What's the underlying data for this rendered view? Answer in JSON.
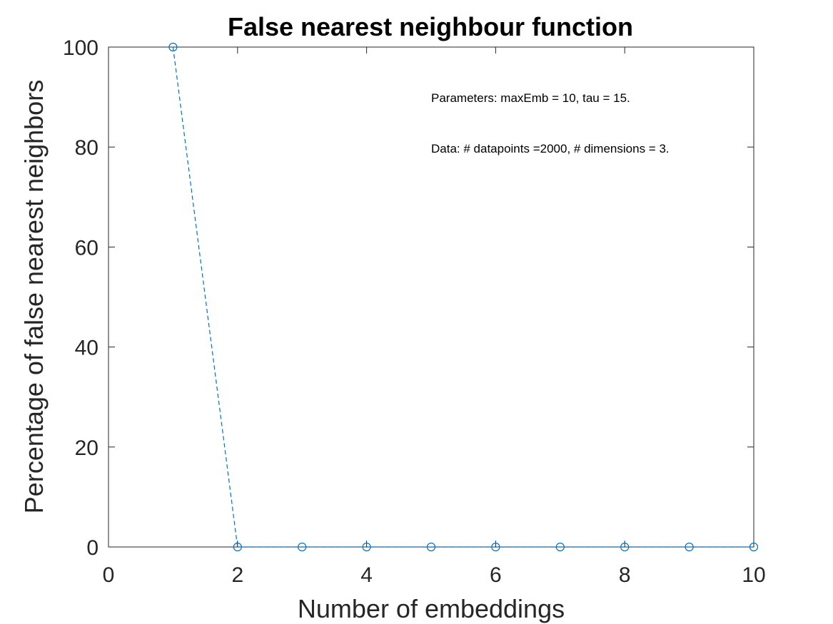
{
  "chart_data": {
    "type": "line",
    "title": "False nearest neighbour function",
    "xlabel": "Number of embeddings",
    "ylabel": "Percentage of false nearest neighbors",
    "xlim": [
      0,
      10
    ],
    "ylim": [
      0,
      100
    ],
    "xticks": [
      0,
      2,
      4,
      6,
      8,
      10
    ],
    "yticks": [
      0,
      20,
      40,
      60,
      80,
      100
    ],
    "grid": false,
    "series": [
      {
        "x": [
          1,
          2,
          3,
          4,
          5,
          6,
          7,
          8,
          9,
          10
        ],
        "y": [
          100,
          0,
          0,
          0,
          0,
          0,
          0,
          0,
          0,
          0
        ],
        "color": "#0072BD",
        "line_style": "dashed",
        "marker": "circle"
      }
    ],
    "annotations": [
      "Parameters: maxEmb = 10, tau = 15.",
      "Data: # datapoints =2000, # dimensions = 3."
    ]
  }
}
